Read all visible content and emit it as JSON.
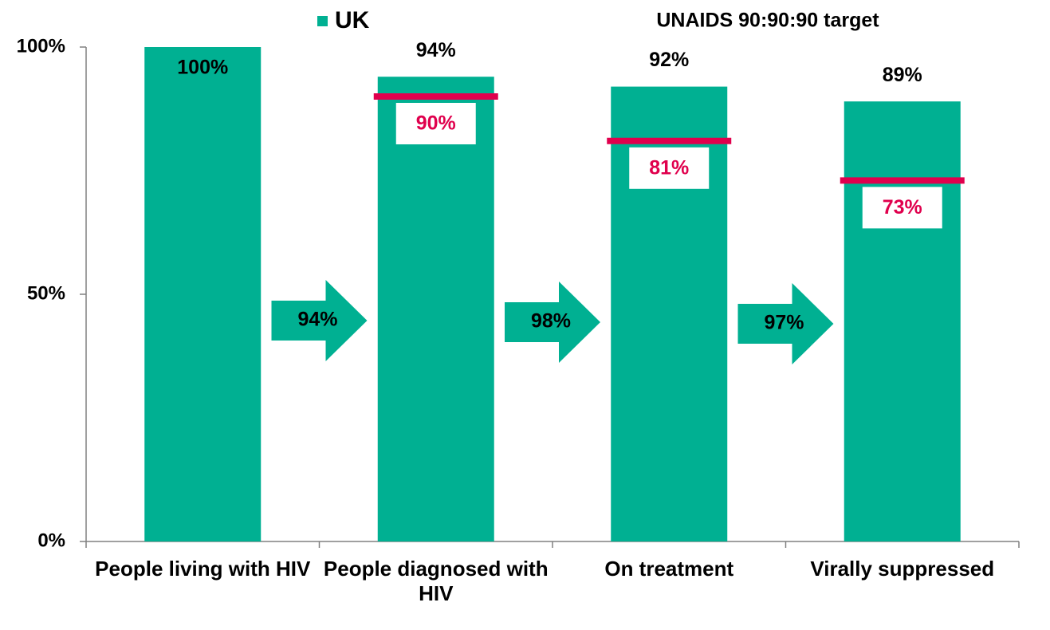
{
  "chart_data": {
    "type": "bar",
    "categories": [
      "People living with HIV",
      "People diagnosed with HIV",
      "On treatment",
      "Virally suppressed"
    ],
    "series": [
      {
        "name": "UK",
        "color": "#00b092",
        "values": [
          100,
          94,
          92,
          89
        ],
        "value_labels": [
          "100%",
          "94%",
          "92%",
          "89%"
        ]
      },
      {
        "name": "UNAIDS 90:90:90 target",
        "color": "#e0004d",
        "values": [
          null,
          90,
          81,
          73
        ],
        "value_labels": [
          null,
          "90%",
          "81%",
          "73%"
        ]
      }
    ],
    "arrows": {
      "values": [
        94,
        98,
        97
      ],
      "value_labels": [
        "94%",
        "98%",
        "97%"
      ]
    },
    "ylim": [
      0,
      100
    ],
    "yticks": [
      {
        "value": 0,
        "label": "0%"
      },
      {
        "value": 50,
        "label": "50%"
      },
      {
        "value": 100,
        "label": "100%"
      }
    ]
  }
}
